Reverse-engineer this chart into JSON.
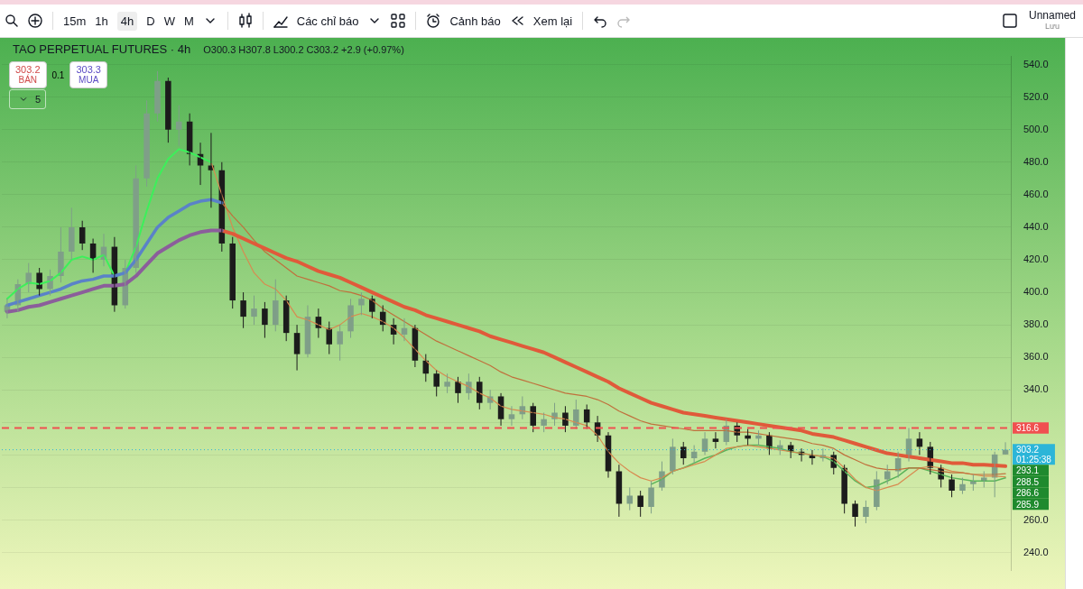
{
  "chart_data": {
    "type": "candlestick",
    "title": "TAO PERPETUAL FUTURES · 4h",
    "categories": [
      null,
      null,
      null,
      null,
      null,
      null,
      null,
      null,
      null,
      null,
      null,
      null,
      null,
      null,
      null,
      null,
      null,
      null,
      null,
      null,
      null,
      null,
      null,
      null,
      null,
      null,
      null,
      null,
      null,
      null,
      null,
      null,
      null,
      null,
      null,
      null,
      null,
      null,
      null,
      null,
      null,
      null,
      null,
      null,
      null,
      null,
      null,
      null,
      null,
      null,
      null,
      null,
      null,
      null,
      null,
      null,
      null,
      null,
      null,
      null,
      null,
      null,
      null,
      null,
      null,
      null,
      null,
      null,
      null,
      null,
      null,
      null,
      null,
      null,
      null,
      null,
      null,
      null,
      null,
      null,
      null,
      null,
      null,
      null,
      null,
      null,
      null,
      null,
      null,
      null,
      null,
      null,
      null,
      null
    ],
    "ohlc": [
      [
        388,
        396,
        384,
        392
      ],
      [
        392,
        408,
        388,
        405
      ],
      [
        405,
        418,
        400,
        412
      ],
      [
        412,
        415,
        398,
        402
      ],
      [
        402,
        414,
        398,
        410
      ],
      [
        410,
        440,
        406,
        425
      ],
      [
        425,
        452,
        420,
        440
      ],
      [
        440,
        444,
        426,
        430
      ],
      [
        430,
        433,
        412,
        420
      ],
      [
        420,
        436,
        416,
        428
      ],
      [
        428,
        434,
        388,
        392
      ],
      [
        392,
        420,
        390,
        415
      ],
      [
        415,
        478,
        412,
        470
      ],
      [
        470,
        518,
        465,
        510
      ],
      [
        510,
        536,
        505,
        530
      ],
      [
        530,
        532,
        492,
        500
      ],
      [
        500,
        515,
        490,
        505
      ],
      [
        505,
        510,
        478,
        485
      ],
      [
        485,
        492,
        466,
        478
      ],
      [
        478,
        498,
        452,
        475
      ],
      [
        475,
        480,
        425,
        430
      ],
      [
        430,
        434,
        390,
        395
      ],
      [
        395,
        400,
        378,
        385
      ],
      [
        385,
        398,
        380,
        390
      ],
      [
        390,
        394,
        372,
        380
      ],
      [
        380,
        408,
        376,
        395
      ],
      [
        395,
        398,
        370,
        375
      ],
      [
        375,
        380,
        352,
        362
      ],
      [
        362,
        392,
        360,
        385
      ],
      [
        385,
        390,
        372,
        378
      ],
      [
        378,
        382,
        362,
        368
      ],
      [
        368,
        380,
        358,
        376
      ],
      [
        376,
        396,
        372,
        392
      ],
      [
        392,
        400,
        386,
        396
      ],
      [
        396,
        398,
        384,
        388
      ],
      [
        388,
        392,
        376,
        380
      ],
      [
        380,
        384,
        368,
        374
      ],
      [
        374,
        384,
        370,
        378
      ],
      [
        378,
        380,
        354,
        358
      ],
      [
        358,
        362,
        345,
        350
      ],
      [
        350,
        352,
        336,
        342
      ],
      [
        342,
        350,
        338,
        345
      ],
      [
        345,
        348,
        332,
        338
      ],
      [
        338,
        350,
        334,
        345
      ],
      [
        345,
        348,
        328,
        332
      ],
      [
        332,
        340,
        328,
        336
      ],
      [
        336,
        338,
        318,
        322
      ],
      [
        322,
        330,
        318,
        325
      ],
      [
        325,
        336,
        322,
        330
      ],
      [
        330,
        332,
        314,
        318
      ],
      [
        318,
        326,
        314,
        322
      ],
      [
        322,
        332,
        318,
        326
      ],
      [
        326,
        330,
        314,
        318
      ],
      [
        318,
        334,
        316,
        328
      ],
      [
        328,
        331,
        316,
        320
      ],
      [
        320,
        324,
        308,
        312
      ],
      [
        312,
        314,
        286,
        290
      ],
      [
        290,
        294,
        262,
        270
      ],
      [
        270,
        280,
        266,
        275
      ],
      [
        275,
        278,
        262,
        268
      ],
      [
        268,
        284,
        264,
        280
      ],
      [
        280,
        296,
        278,
        290
      ],
      [
        290,
        310,
        288,
        305
      ],
      [
        305,
        308,
        294,
        298
      ],
      [
        298,
        306,
        295,
        302
      ],
      [
        302,
        314,
        300,
        310
      ],
      [
        310,
        314,
        304,
        308
      ],
      [
        308,
        322,
        306,
        318
      ],
      [
        318,
        320,
        308,
        312
      ],
      [
        312,
        316,
        306,
        310
      ],
      [
        310,
        315,
        306,
        312
      ],
      [
        312,
        314,
        300,
        304
      ],
      [
        304,
        309,
        300,
        306
      ],
      [
        306,
        308,
        298,
        302
      ],
      [
        302,
        304,
        296,
        300
      ],
      [
        300,
        303,
        294,
        298
      ],
      [
        298,
        304,
        296,
        300
      ],
      [
        300,
        302,
        288,
        292
      ],
      [
        292,
        294,
        264,
        270
      ],
      [
        270,
        272,
        256,
        262
      ],
      [
        262,
        272,
        258,
        268
      ],
      [
        268,
        290,
        266,
        285
      ],
      [
        285,
        294,
        282,
        290
      ],
      [
        290,
        302,
        286,
        298
      ],
      [
        298,
        316.6,
        296,
        310
      ],
      [
        310,
        314,
        300,
        305
      ],
      [
        305,
        308,
        288,
        292
      ],
      [
        292,
        294,
        280,
        285
      ],
      [
        285,
        288,
        274,
        278
      ],
      [
        278,
        286,
        276,
        282
      ],
      [
        282,
        288,
        278,
        284
      ],
      [
        284,
        290,
        280,
        286
      ],
      [
        286,
        302,
        274,
        300.3
      ],
      [
        300.3,
        307.8,
        300.2,
        303.2
      ]
    ],
    "series": [
      {
        "type": "line",
        "color": "#8b5e9b",
        "values": [
          388,
          389,
          391,
          392,
          394,
          396,
          398,
          400,
          402,
          404,
          404,
          405,
          410,
          417,
          424,
          428,
          432,
          435,
          437,
          438,
          438,
          null,
          null,
          null,
          null,
          null,
          null,
          null,
          null,
          null,
          null,
          null,
          null,
          null,
          null,
          null,
          null,
          null,
          null,
          null,
          null,
          null,
          null,
          null,
          null,
          null,
          null,
          null,
          null,
          null,
          null,
          null,
          null,
          null,
          null,
          null,
          null,
          null,
          null,
          null,
          null,
          null,
          null,
          null,
          null,
          null,
          null,
          null,
          null,
          null,
          null,
          null,
          null,
          null,
          null,
          null,
          null,
          null,
          null,
          null,
          null,
          null,
          null,
          null,
          null,
          null,
          null,
          null,
          null,
          null,
          null,
          null,
          null,
          null
        ]
      },
      {
        "type": "line",
        "color": "#e05a3a",
        "value_labels": [
          null,
          null,
          null,
          null,
          null,
          null,
          null,
          null,
          null,
          null,
          null,
          null,
          null,
          null,
          null,
          null,
          null,
          null,
          null,
          null,
          null,
          null,
          null,
          null,
          null,
          null,
          null,
          null,
          null,
          null,
          null,
          null,
          null,
          null,
          null,
          null,
          null,
          null,
          null,
          null,
          null,
          null,
          null,
          null,
          null,
          null,
          null,
          null,
          null,
          null,
          null,
          null,
          null,
          null,
          null,
          null,
          null,
          null,
          null,
          null,
          null,
          null,
          null,
          null,
          null,
          null,
          null,
          null,
          null,
          null,
          null,
          null,
          null,
          null,
          null,
          null,
          null,
          null,
          null,
          null,
          null,
          null,
          null,
          null,
          null,
          null,
          null,
          null,
          null,
          null,
          null,
          null,
          null,
          "293.1"
        ],
        "values": [
          null,
          null,
          null,
          null,
          null,
          null,
          null,
          null,
          null,
          null,
          null,
          null,
          null,
          null,
          null,
          null,
          null,
          null,
          null,
          null,
          438,
          436,
          433,
          430,
          427,
          424,
          421,
          419,
          416,
          413,
          411,
          409,
          406,
          403,
          400,
          397,
          394,
          391,
          389,
          386,
          384,
          382,
          380,
          378,
          376,
          373,
          371,
          369,
          367,
          365,
          363,
          360,
          357,
          354,
          351,
          348,
          345,
          341,
          338,
          335,
          332,
          330,
          328,
          326,
          325,
          324,
          323,
          322,
          321,
          320,
          319,
          318,
          317,
          316,
          315,
          313,
          312,
          311,
          309,
          307,
          305,
          303,
          301,
          300,
          299,
          298,
          297,
          296,
          295,
          295,
          294,
          294,
          293.5,
          293.1
        ]
      },
      {
        "type": "line",
        "color": "#5a82c8",
        "values": [
          392,
          394,
          396,
          398,
          400,
          402,
          405,
          407,
          408,
          410,
          410,
          412,
          420,
          430,
          440,
          446,
          450,
          454,
          456,
          457,
          455,
          null,
          null,
          null,
          null,
          null,
          null,
          null,
          null,
          null,
          null,
          null,
          null,
          null,
          null,
          null,
          null,
          null,
          null,
          null,
          null,
          null,
          null,
          null,
          null,
          null,
          null,
          null,
          null,
          null,
          null,
          null,
          null,
          null,
          null,
          null,
          null,
          null,
          null,
          null,
          null,
          null,
          null,
          null,
          null,
          null,
          null,
          null,
          null,
          null,
          null,
          null,
          null,
          null,
          null,
          null,
          null,
          null,
          null,
          null,
          null,
          null,
          null,
          null,
          null,
          null,
          null,
          null,
          null,
          null,
          null,
          null,
          null,
          null
        ]
      },
      {
        "type": "line",
        "color": "#3cf05a",
        "values": [
          396,
          402,
          406,
          405,
          407,
          412,
          420,
          422,
          420,
          423,
          410,
          412,
          428,
          450,
          470,
          482,
          488,
          486,
          483,
          480,
          null,
          null,
          null,
          null,
          null,
          null,
          null,
          null,
          null,
          null,
          null,
          null,
          null,
          null,
          null,
          null,
          null,
          null,
          null,
          null,
          null,
          null,
          null,
          null,
          null,
          null,
          null,
          null,
          null,
          null,
          null,
          null,
          null,
          null,
          null,
          null,
          null,
          null,
          null,
          null,
          null,
          null,
          null,
          null,
          null,
          null,
          null,
          null,
          null,
          null,
          null,
          null,
          null,
          null,
          null,
          null,
          null,
          null,
          null,
          null,
          null,
          null,
          null,
          null,
          null,
          null,
          null,
          null,
          null,
          null,
          null,
          null,
          null,
          null
        ]
      },
      {
        "type": "line",
        "color": "#c0703c",
        "value_labels": [
          null,
          null,
          null,
          null,
          null,
          null,
          null,
          null,
          null,
          null,
          null,
          null,
          null,
          null,
          null,
          null,
          null,
          null,
          null,
          null,
          null,
          null,
          null,
          null,
          null,
          null,
          null,
          null,
          null,
          null,
          null,
          null,
          null,
          null,
          null,
          null,
          null,
          null,
          null,
          null,
          null,
          null,
          null,
          null,
          null,
          null,
          null,
          null,
          null,
          null,
          null,
          null,
          null,
          null,
          null,
          null,
          null,
          null,
          null,
          null,
          null,
          null,
          null,
          null,
          null,
          null,
          null,
          null,
          null,
          null,
          null,
          null,
          null,
          null,
          null,
          null,
          null,
          null,
          null,
          null,
          null,
          null,
          null,
          null,
          null,
          null,
          null,
          null,
          null,
          null,
          null,
          null,
          null,
          "288.5"
        ],
        "values": [
          null,
          null,
          null,
          null,
          null,
          null,
          null,
          null,
          null,
          null,
          null,
          null,
          null,
          null,
          null,
          null,
          null,
          null,
          null,
          null,
          455,
          447,
          440,
          432,
          425,
          420,
          415,
          410,
          408,
          406,
          404,
          401,
          400,
          398,
          395,
          390,
          386,
          382,
          378,
          374,
          370,
          367,
          364,
          361,
          358,
          355,
          351,
          348,
          346,
          344,
          342,
          340,
          338,
          337,
          336,
          334,
          331,
          327,
          324,
          321,
          319,
          318,
          317,
          316,
          315,
          315,
          315,
          315,
          314,
          314,
          313,
          312,
          311,
          310,
          309,
          307,
          306,
          304,
          300,
          297,
          294,
          292,
          291,
          291,
          292,
          292,
          291,
          290,
          289,
          289,
          288,
          288,
          288,
          288.5
        ]
      },
      {
        "type": "line",
        "color": "#d88a50",
        "value_labels": [
          null,
          null,
          null,
          null,
          null,
          null,
          null,
          null,
          null,
          null,
          null,
          null,
          null,
          null,
          null,
          null,
          null,
          null,
          null,
          null,
          null,
          null,
          null,
          null,
          null,
          null,
          null,
          null,
          null,
          null,
          null,
          null,
          null,
          null,
          null,
          null,
          null,
          null,
          null,
          null,
          null,
          null,
          null,
          null,
          null,
          null,
          null,
          null,
          null,
          null,
          null,
          null,
          null,
          null,
          null,
          null,
          null,
          null,
          null,
          null,
          null,
          null,
          null,
          null,
          null,
          null,
          null,
          null,
          null,
          null,
          null,
          null,
          null,
          null,
          null,
          null,
          null,
          null,
          null,
          null,
          null,
          null,
          null,
          null,
          null,
          null,
          null,
          null,
          null,
          null,
          null,
          null,
          null,
          "286.6"
        ],
        "values": [
          null,
          null,
          null,
          null,
          null,
          null,
          null,
          null,
          null,
          null,
          null,
          null,
          null,
          null,
          null,
          null,
          null,
          null,
          null,
          480,
          460,
          440,
          425,
          412,
          405,
          402,
          395,
          385,
          383,
          380,
          377,
          380,
          385,
          387,
          385,
          382,
          378,
          372,
          365,
          358,
          352,
          348,
          345,
          342,
          338,
          335,
          330,
          328,
          327,
          326,
          325,
          323,
          322,
          320,
          318,
          312,
          302,
          295,
          290,
          286,
          284,
          286,
          290,
          292,
          294,
          296,
          300,
          304,
          305,
          306,
          305,
          304,
          303,
          302,
          301,
          300,
          299,
          298,
          292,
          285,
          280,
          278,
          280,
          282,
          287,
          292,
          293,
          292,
          290,
          289,
          288,
          287,
          287,
          286.6
        ]
      },
      {
        "type": "line",
        "color": "#5ab45a",
        "value_labels": [
          null,
          null,
          null,
          null,
          null,
          null,
          null,
          null,
          null,
          null,
          null,
          null,
          null,
          null,
          null,
          null,
          null,
          null,
          null,
          null,
          null,
          null,
          null,
          null,
          null,
          null,
          null,
          null,
          null,
          null,
          null,
          null,
          null,
          null,
          null,
          null,
          null,
          null,
          null,
          null,
          null,
          null,
          null,
          null,
          null,
          null,
          null,
          null,
          null,
          null,
          null,
          null,
          null,
          null,
          null,
          null,
          null,
          null,
          null,
          null,
          null,
          null,
          null,
          null,
          null,
          null,
          null,
          null,
          null,
          null,
          null,
          null,
          null,
          null,
          null,
          null,
          null,
          null,
          null,
          null,
          null,
          null,
          null,
          null,
          null,
          null,
          null,
          null,
          null,
          null,
          null,
          null,
          null,
          "285.9"
        ],
        "values": [
          null,
          null,
          null,
          null,
          null,
          null,
          null,
          null,
          null,
          null,
          null,
          null,
          null,
          null,
          null,
          null,
          null,
          null,
          null,
          null,
          null,
          null,
          null,
          null,
          null,
          null,
          null,
          null,
          null,
          null,
          null,
          null,
          null,
          null,
          null,
          null,
          null,
          null,
          null,
          null,
          null,
          null,
          null,
          null,
          null,
          null,
          null,
          null,
          null,
          null,
          null,
          null,
          null,
          null,
          null,
          null,
          null,
          null,
          null,
          null,
          282,
          285,
          290,
          292,
          295,
          298,
          300,
          303,
          305,
          306,
          306,
          305,
          304,
          302,
          301,
          300,
          299,
          296,
          290,
          284,
          280,
          281,
          284,
          287,
          292,
          292,
          290,
          288,
          286,
          285,
          284,
          284,
          284,
          285.9
        ]
      }
    ],
    "ylim": [
      229,
      545
    ],
    "yticks": [
      {
        "value": 240,
        "label": "240.0"
      },
      {
        "value": 260,
        "label": "260.0"
      },
      {
        "value": 280,
        "label": null
      },
      {
        "value": 300,
        "label": null
      },
      {
        "value": 320,
        "label": null
      },
      {
        "value": 340,
        "label": "340.0"
      },
      {
        "value": 360,
        "label": "360.0"
      },
      {
        "value": 380,
        "label": "380.0"
      },
      {
        "value": 400,
        "label": "400.0"
      },
      {
        "value": 420,
        "label": "420.0"
      },
      {
        "value": 440,
        "label": "440.0"
      },
      {
        "value": 460,
        "label": "460.0"
      },
      {
        "value": 480,
        "label": "480.0"
      },
      {
        "value": 500,
        "label": "500.0"
      },
      {
        "value": 520,
        "label": "520.0"
      },
      {
        "value": 540,
        "label": "540.0"
      }
    ],
    "ref_lines": [
      {
        "axis": "y",
        "value": 316.6,
        "label": "316.6",
        "color": "#f05050",
        "line_style": "dashed"
      },
      {
        "axis": "y",
        "value": 303.2,
        "label": "303.2",
        "color": "#2cb5d8",
        "line_style": "dotted"
      }
    ],
    "annotations": [
      "O300.3 H307.8 L300.2 C303.2 +2.9 (+0.97%)",
      "15m",
      "1h",
      "4h",
      "D",
      "W",
      "M",
      "Các chỉ báo",
      "Cảnh báo",
      "Xem lại",
      "Unnamed",
      "Lưu",
      "303.2",
      "BÁN",
      "0.1",
      "303.3",
      "MUA",
      "5",
      "01:25:38"
    ],
    "grid": "y",
    "legend": false,
    "tick_labels": "y",
    "marker": "none"
  }
}
